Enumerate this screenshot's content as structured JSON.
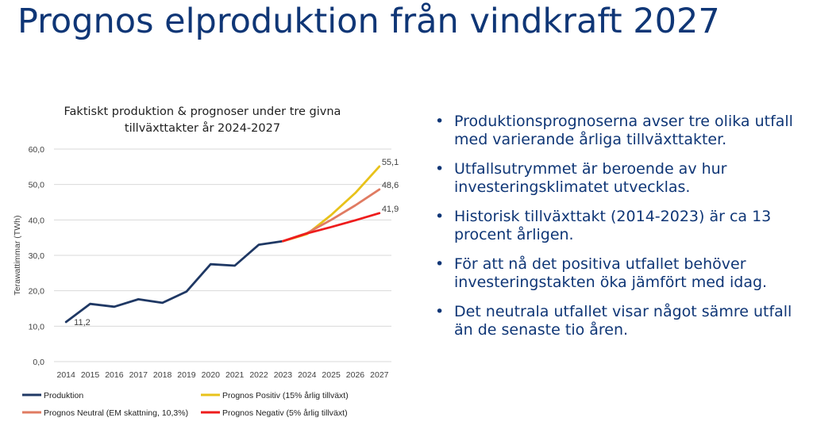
{
  "slide": {
    "title": "Prognos elproduktion från vindkraft 2027"
  },
  "bullets": [
    "Produktionsprognoserna avser tre olika utfall med varierande årliga tillväxttakter.",
    "Utfallsutrymmet är beroende av hur investeringsklimatet utvecklas.",
    "Historisk tillväxttakt (2014-2023) är ca 13 procent årligen.",
    "För att nå det positiva utfallet behöver investeringstakten öka jämfört med idag.",
    "Det neutrala utfallet visar något sämre utfall än de senaste tio åren."
  ],
  "bullet_symbol": "•",
  "chart_data": {
    "type": "line",
    "title_lines": [
      "Faktiskt produktion & prognoser under tre givna",
      "tillväxttakter år 2024-2027"
    ],
    "xlabel": "",
    "ylabel": "Terawattimmar (TWh)",
    "ylim": [
      0,
      60
    ],
    "yticks": [
      0,
      10,
      20,
      30,
      40,
      50,
      60
    ],
    "ytick_labels": [
      "0,0",
      "10,0",
      "20,0",
      "30,0",
      "40,0",
      "50,0",
      "60,0"
    ],
    "categories": [
      "2014",
      "2015",
      "2016",
      "2017",
      "2018",
      "2019",
      "2020",
      "2021",
      "2022",
      "2023",
      "2024",
      "2025",
      "2026",
      "2027"
    ],
    "grid": true,
    "legend_position": "bottom",
    "series": [
      {
        "name": "Produktion",
        "color": "#1f3864",
        "values": [
          11.2,
          16.3,
          15.5,
          17.6,
          16.6,
          19.8,
          27.5,
          27.1,
          33.0,
          34.0,
          null,
          null,
          null,
          null
        ],
        "end_label": "11,2",
        "end_label_at": "start"
      },
      {
        "name": "Prognos Positiv (15% årlig tillväxt)",
        "color": "#e8c21a",
        "values": [
          null,
          null,
          null,
          null,
          null,
          null,
          null,
          null,
          null,
          34.0,
          36.0,
          41.4,
          47.6,
          55.1
        ],
        "end_label": "55,1",
        "end_label_at": "end"
      },
      {
        "name": "Prognos Neutral (EM skattning, 10,3%)",
        "color": "#e07b62",
        "values": [
          null,
          null,
          null,
          null,
          null,
          null,
          null,
          null,
          null,
          34.0,
          36.3,
          40.0,
          44.1,
          48.6
        ],
        "end_label": "48,6",
        "end_label_at": "end"
      },
      {
        "name": "Prognos Negativ (5% årlig tillväxt)",
        "color": "#ee1c1c",
        "values": [
          null,
          null,
          null,
          null,
          null,
          null,
          null,
          null,
          null,
          34.0,
          36.2,
          38.0,
          39.9,
          41.9
        ],
        "end_label": "41,9",
        "end_label_at": "end"
      }
    ],
    "legend_order": [
      0,
      1,
      2,
      3
    ]
  }
}
